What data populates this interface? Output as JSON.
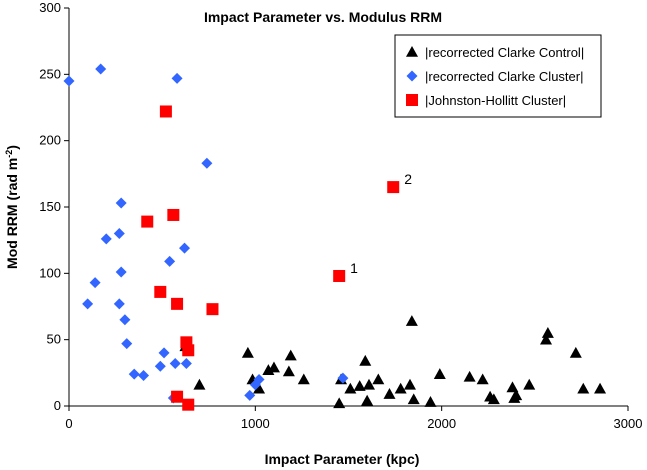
{
  "chart_data": {
    "type": "scatter",
    "title": "Impact Parameter vs. Modulus RRM",
    "xlabel": "Impact Parameter (kpc)",
    "ylabel_main": "Mod RRM (rad m",
    "ylabel_sup": "-2",
    "ylabel_end": ")",
    "xlim": [
      0,
      3000
    ],
    "ylim": [
      0,
      300
    ],
    "xticks": [
      "0",
      "1000",
      "2000",
      "3000"
    ],
    "yticks": [
      "0",
      "50",
      "100",
      "150",
      "200",
      "250",
      "300"
    ],
    "legend_position": "top-right",
    "series": [
      {
        "name": "|recorrected Clarke Control|",
        "marker": "triangle",
        "color": "#000000",
        "points": [
          [
            625,
            45
          ],
          [
            700,
            16
          ],
          [
            960,
            40
          ],
          [
            985,
            20
          ],
          [
            1020,
            13
          ],
          [
            1070,
            27
          ],
          [
            1100,
            29
          ],
          [
            1180,
            26
          ],
          [
            1190,
            38
          ],
          [
            1260,
            20
          ],
          [
            1450,
            2
          ],
          [
            1460,
            20
          ],
          [
            1510,
            13
          ],
          [
            1560,
            15
          ],
          [
            1590,
            34
          ],
          [
            1600,
            4
          ],
          [
            1610,
            16
          ],
          [
            1660,
            20
          ],
          [
            1720,
            9
          ],
          [
            1780,
            13
          ],
          [
            1830,
            16
          ],
          [
            1840,
            64
          ],
          [
            1850,
            5
          ],
          [
            1940,
            3
          ],
          [
            1990,
            24
          ],
          [
            2150,
            22
          ],
          [
            2220,
            20
          ],
          [
            2260,
            7
          ],
          [
            2280,
            5
          ],
          [
            2380,
            14
          ],
          [
            2390,
            6
          ],
          [
            2400,
            8
          ],
          [
            2470,
            16
          ],
          [
            2560,
            50
          ],
          [
            2570,
            55
          ],
          [
            2720,
            40
          ],
          [
            2760,
            13
          ],
          [
            2850,
            13
          ]
        ]
      },
      {
        "name": "|recorrected Clarke Cluster|",
        "marker": "diamond",
        "color": "#3366FF",
        "points": [
          [
            0,
            245
          ],
          [
            100,
            77
          ],
          [
            140,
            93
          ],
          [
            170,
            254
          ],
          [
            200,
            126
          ],
          [
            270,
            130
          ],
          [
            270,
            77
          ],
          [
            280,
            153
          ],
          [
            280,
            101
          ],
          [
            300,
            65
          ],
          [
            310,
            47
          ],
          [
            350,
            24
          ],
          [
            400,
            23
          ],
          [
            490,
            30
          ],
          [
            510,
            40
          ],
          [
            540,
            109
          ],
          [
            560,
            6
          ],
          [
            570,
            32
          ],
          [
            580,
            247
          ],
          [
            620,
            119
          ],
          [
            630,
            32
          ],
          [
            740,
            183
          ],
          [
            970,
            8
          ],
          [
            1000,
            16
          ],
          [
            1020,
            20
          ],
          [
            1470,
            21
          ]
        ]
      },
      {
        "name": "|Johnston-Hollitt Cluster|",
        "marker": "square",
        "color": "#FF0000",
        "points": [
          [
            420,
            139
          ],
          [
            490,
            86
          ],
          [
            520,
            222
          ],
          [
            560,
            144
          ],
          [
            580,
            77
          ],
          [
            580,
            7
          ],
          [
            630,
            48
          ],
          [
            640,
            42
          ],
          [
            640,
            1
          ],
          [
            770,
            73
          ],
          [
            1450,
            98
          ],
          [
            1740,
            165
          ]
        ]
      }
    ],
    "annotations": [
      {
        "text": "1",
        "x": 1450,
        "y": 98
      },
      {
        "text": "2",
        "x": 1740,
        "y": 165
      }
    ]
  }
}
